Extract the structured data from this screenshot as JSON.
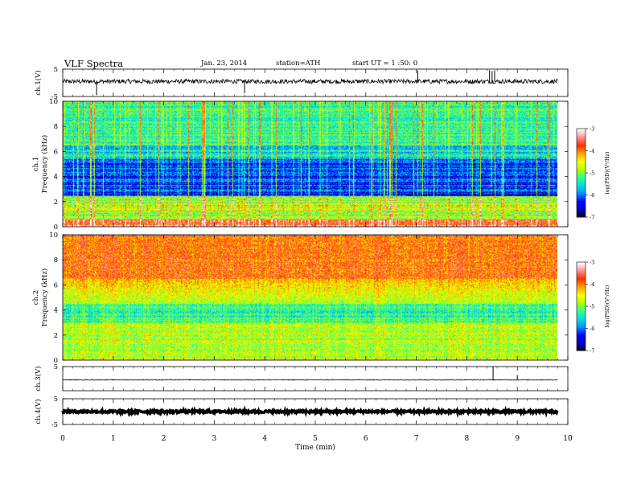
{
  "header": {
    "title": "VLF  Spectra",
    "date": "Jan. 23, 2014",
    "station": "station=ATH",
    "start": "start  UT  =   1  :50: 0"
  },
  "colors": {
    "colormap": [
      "#000000",
      "#0000c8",
      "#0000ff",
      "#0090ff",
      "#00e0e0",
      "#30ff90",
      "#b0ff00",
      "#ffff00",
      "#ffa000",
      "#ff3000",
      "#ff9090",
      "#ffffff"
    ]
  },
  "chart_data": [
    {
      "type": "line",
      "ylabel": "ch.1(V)",
      "yticks": [
        "5",
        "-5"
      ],
      "ylim": [
        -5,
        5
      ],
      "xlim": [
        0,
        10
      ],
      "description_level": "noisy trace near +0.5 V",
      "spikes": [
        {
          "x": 0.67,
          "y": -4.5
        },
        {
          "x": 3.6,
          "y": -3.8
        },
        {
          "x": 7.03,
          "y": 4.5
        },
        {
          "x": 8.45,
          "y": 4.6
        },
        {
          "x": 8.5,
          "y": 4.3
        },
        {
          "x": 8.55,
          "y": 4.6
        }
      ]
    },
    {
      "type": "heatmap",
      "ylabel_channel": "ch.1",
      "ylabel": "Frequency  (kHz)",
      "yticks": [
        "10",
        "8",
        "6",
        "4",
        "2",
        "0"
      ],
      "ylim": [
        0,
        10
      ],
      "xlim": [
        0,
        9.8
      ],
      "colorbar": {
        "label": "log(PSD)(V²/Hz)",
        "ticks": [
          "-3",
          "-4",
          "-5",
          "-6",
          "-7"
        ],
        "range": [
          -7,
          -3
        ]
      }
    },
    {
      "type": "heatmap",
      "ylabel_channel": "ch.2",
      "ylabel": "Frequency  (kHz)",
      "yticks": [
        "10",
        "8",
        "6",
        "4",
        "2",
        "0"
      ],
      "ylim": [
        0,
        10
      ],
      "xlim": [
        0,
        9.8
      ],
      "colorbar": {
        "label": "log(PSD)(V²/Hz)",
        "ticks": [
          "-3",
          "-4",
          "-5",
          "-6",
          "-7"
        ],
        "range": [
          -7,
          -3
        ]
      }
    },
    {
      "type": "line",
      "ylabel": "ch.3(V)",
      "yticks": [
        "5"
      ],
      "ylim": [
        -5,
        5
      ],
      "xlim": [
        0,
        10
      ],
      "level": -0.5,
      "spikes": [
        {
          "x": 8.52,
          "y": 5.0
        },
        {
          "x": 9.0,
          "y": 1.5
        }
      ]
    },
    {
      "type": "line",
      "ylabel": "ch.4(V)",
      "yticks": [
        "5",
        "-5"
      ],
      "ylim": [
        -5,
        5
      ],
      "xlim": [
        0,
        10
      ],
      "level": 0.0
    }
  ],
  "xaxis": {
    "label": "Time  (min)",
    "ticks": [
      "0",
      "1",
      "2",
      "3",
      "4",
      "5",
      "6",
      "7",
      "8",
      "9",
      "10"
    ]
  }
}
